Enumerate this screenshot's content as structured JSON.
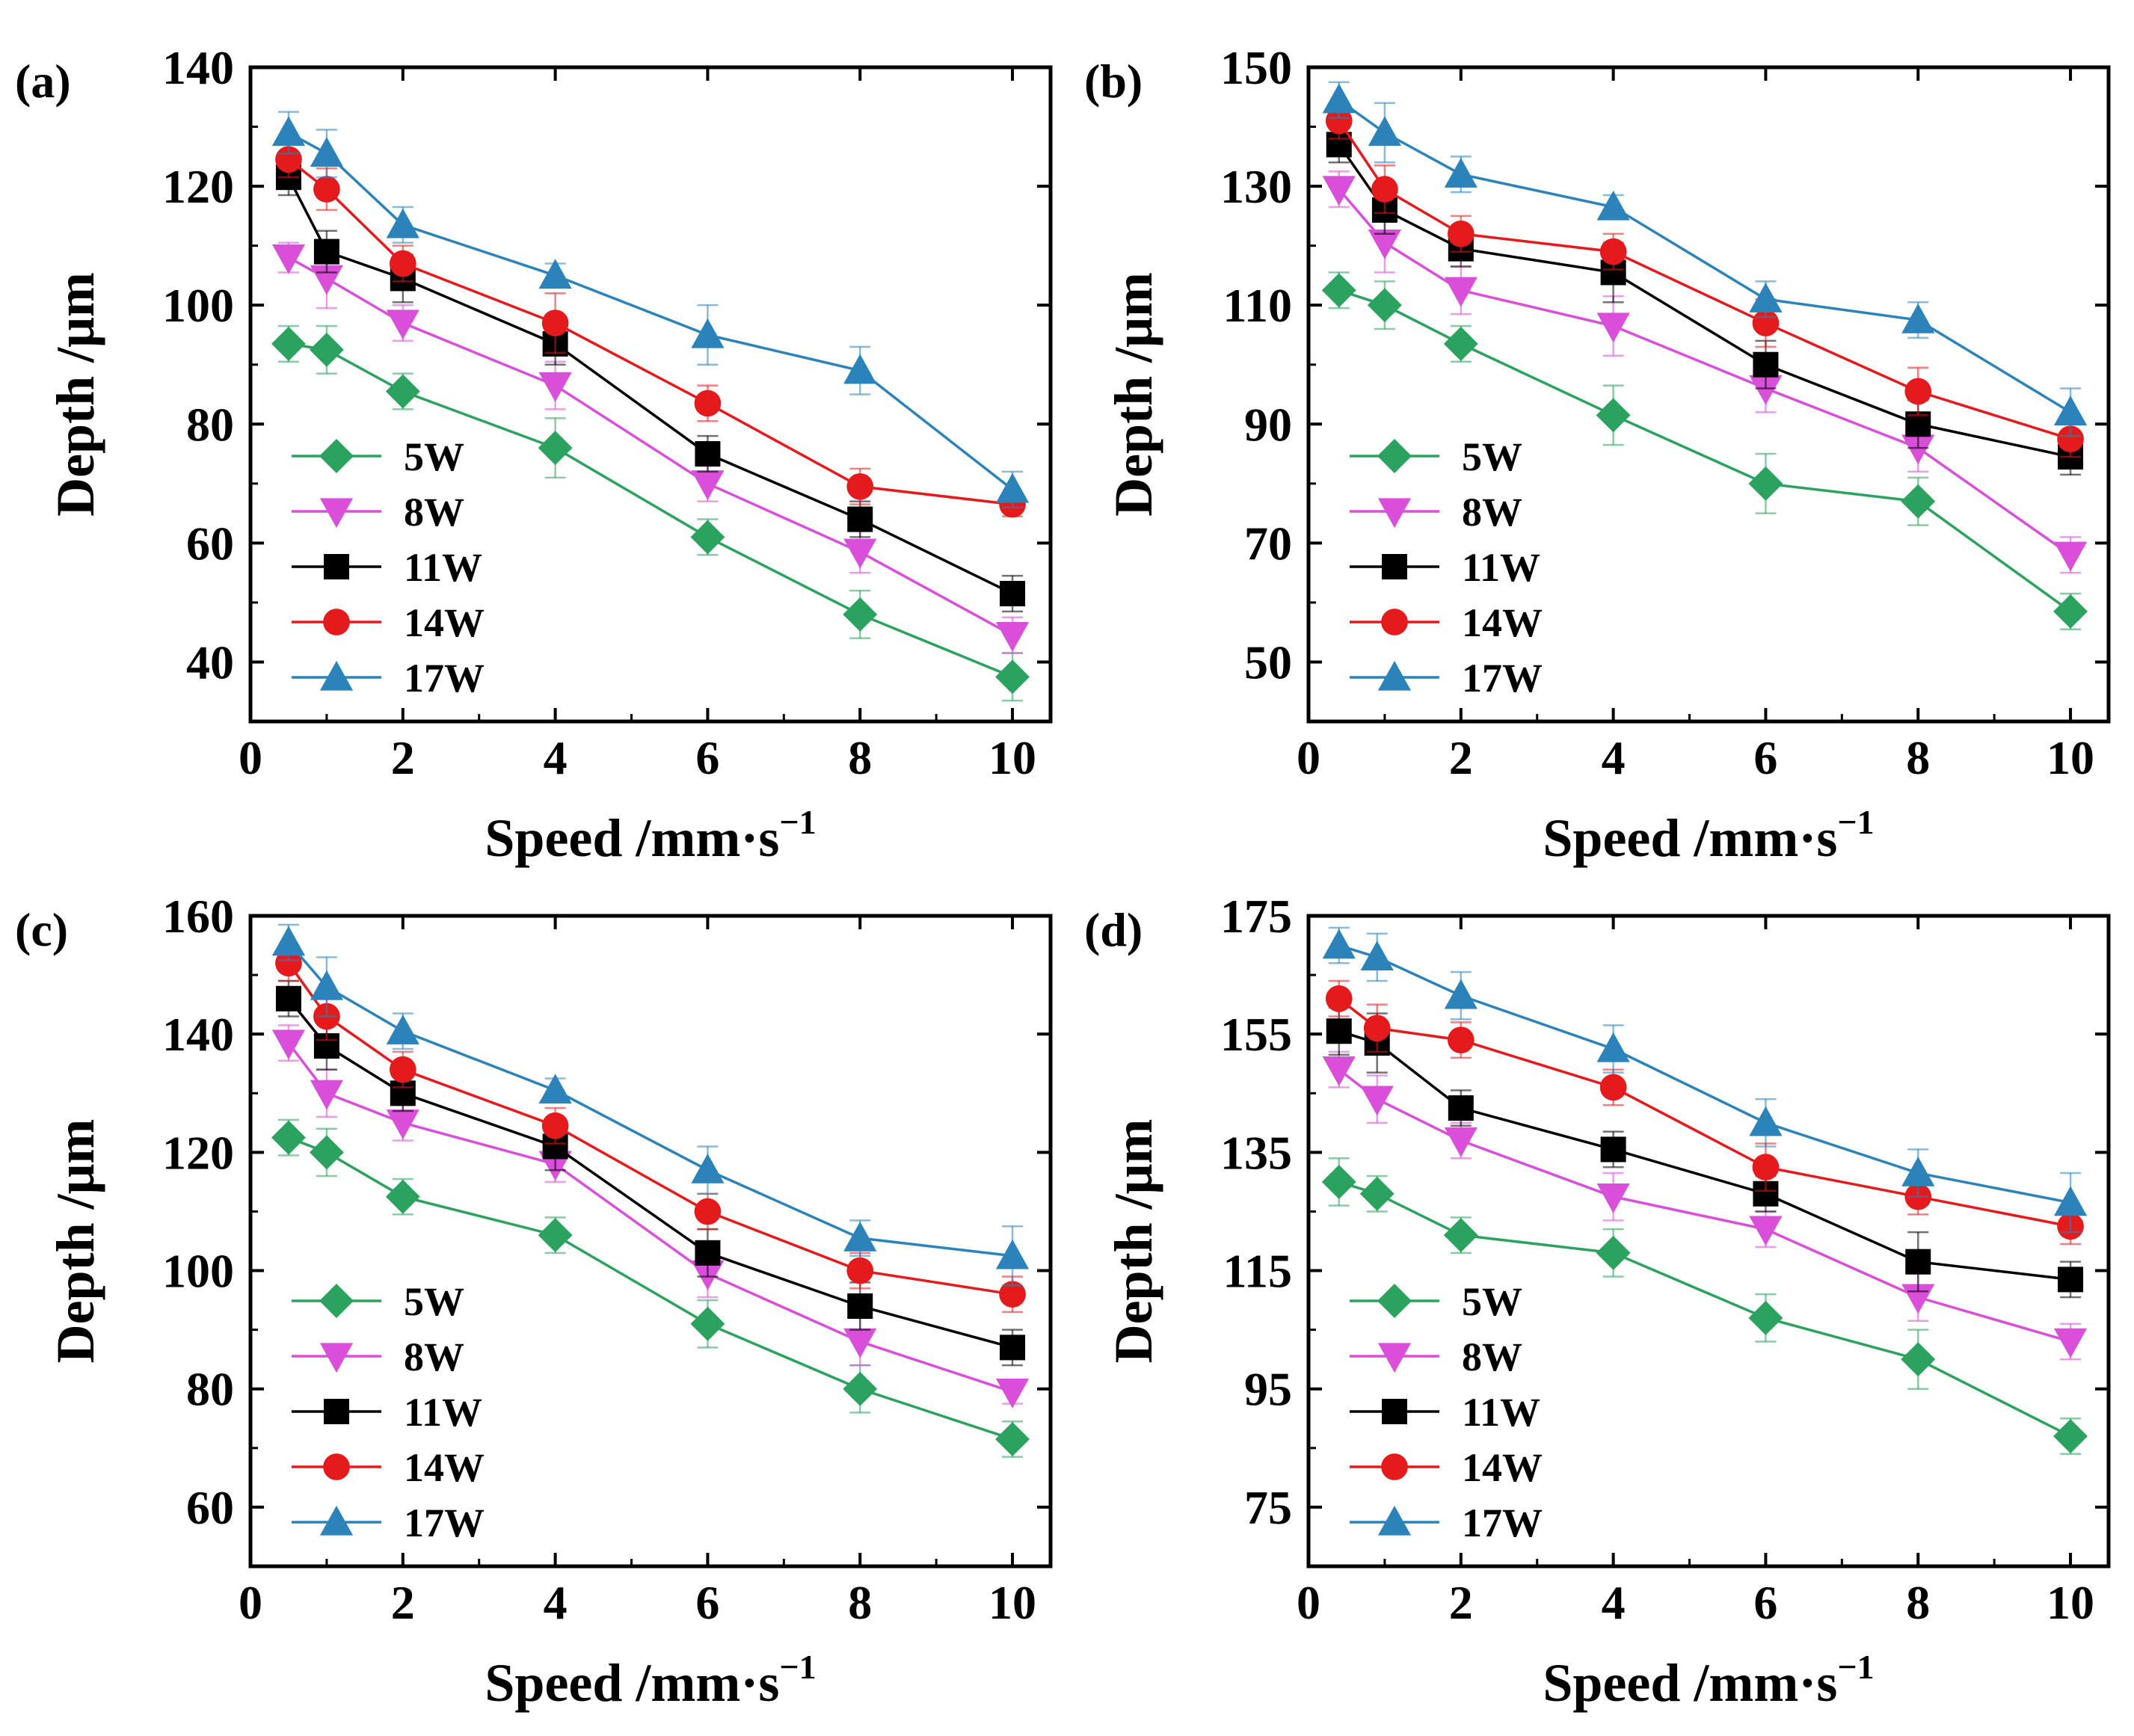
{
  "chart_data": [
    {
      "type": "line",
      "panel_label": "(a)",
      "xlabel": "Speed /mm·s",
      "xlabel_sup": "−1",
      "ylabel": "Depth /μm",
      "xlim": [
        0,
        10.5
      ],
      "ylim": [
        30,
        140
      ],
      "xticks": [
        "0",
        "2",
        "4",
        "6",
        "8",
        "10"
      ],
      "yticks": [
        "40",
        "60",
        "80",
        "100",
        "120",
        "140"
      ],
      "legend_position": "bottom-left",
      "x": [
        0.5,
        1,
        2,
        4,
        6,
        8,
        10
      ],
      "series": [
        {
          "name": "5W",
          "color": "#2ca25f",
          "marker": "diamond",
          "values": [
            93.5,
            92.5,
            85.5,
            76,
            61,
            48,
            37.5
          ],
          "errors": [
            3,
            4,
            3,
            5,
            3,
            4,
            4
          ]
        },
        {
          "name": "8W",
          "color": "#d94fd9",
          "marker": "triangle-down",
          "values": [
            108,
            104.5,
            97,
            86.5,
            70,
            58.5,
            44.5
          ],
          "errors": [
            2.5,
            5,
            3,
            4,
            3,
            3.5,
            3
          ]
        },
        {
          "name": "11W",
          "color": "#000000",
          "marker": "square",
          "values": [
            121.5,
            109,
            104.5,
            93.5,
            75,
            64,
            51.5
          ],
          "errors": [
            3,
            3.5,
            4,
            3.5,
            3,
            3,
            3
          ]
        },
        {
          "name": "14W",
          "color": "#e41a1c",
          "marker": "circle",
          "values": [
            124.5,
            119.5,
            107,
            97,
            83.5,
            69.5,
            66.5
          ],
          "errors": [
            3,
            3.5,
            3,
            5,
            3,
            3,
            2
          ]
        },
        {
          "name": "17W",
          "color": "#2b83ba",
          "marker": "triangle-up",
          "values": [
            129,
            125.5,
            113.5,
            105,
            95,
            89,
            69
          ],
          "errors": [
            3.5,
            4,
            3,
            2,
            5,
            4,
            3
          ]
        }
      ]
    },
    {
      "type": "line",
      "panel_label": "(b)",
      "xlabel": "Speed /mm·s",
      "xlabel_sup": "−1",
      "ylabel": "Depth /μm",
      "xlim": [
        0,
        10.5
      ],
      "ylim": [
        40,
        150
      ],
      "xticks": [
        "0",
        "2",
        "4",
        "6",
        "8",
        "10"
      ],
      "yticks": [
        "50",
        "70",
        "90",
        "110",
        "130",
        "150"
      ],
      "legend_position": "bottom-left",
      "x": [
        0.4,
        1,
        2,
        4,
        6,
        8,
        10
      ],
      "series": [
        {
          "name": "5W",
          "color": "#2ca25f",
          "marker": "diamond",
          "values": [
            112.5,
            110,
            103.5,
            91.5,
            80,
            77,
            58.5
          ],
          "errors": [
            3,
            4,
            3,
            5,
            5,
            4,
            3
          ]
        },
        {
          "name": "8W",
          "color": "#d94fd9",
          "marker": "triangle-down",
          "values": [
            129.5,
            120.5,
            112.5,
            106.5,
            96,
            86,
            68
          ],
          "errors": [
            3,
            5,
            4,
            5,
            4,
            4,
            3
          ]
        },
        {
          "name": "11W",
          "color": "#000000",
          "marker": "square",
          "values": [
            137,
            126,
            119.5,
            115.5,
            100,
            90,
            84.5
          ],
          "errors": [
            3,
            4,
            3,
            5,
            4,
            4,
            3
          ]
        },
        {
          "name": "14W",
          "color": "#e41a1c",
          "marker": "circle",
          "values": [
            141,
            129.5,
            122,
            119,
            107,
            95.5,
            87.5
          ],
          "errors": [
            3,
            4,
            3,
            3,
            4,
            4,
            3
          ]
        },
        {
          "name": "17W",
          "color": "#2b83ba",
          "marker": "triangle-up",
          "values": [
            144.5,
            139,
            132,
            126.5,
            111,
            107.5,
            92
          ],
          "errors": [
            3,
            5,
            3,
            2,
            3,
            3,
            4
          ]
        }
      ]
    },
    {
      "type": "line",
      "panel_label": "(c)",
      "xlabel": "Speed /mm·s",
      "xlabel_sup": "−1",
      "ylabel": "Depth /μm",
      "xlim": [
        0,
        10.5
      ],
      "ylim": [
        50,
        160
      ],
      "xticks": [
        "0",
        "2",
        "4",
        "6",
        "8",
        "10"
      ],
      "yticks": [
        "60",
        "80",
        "100",
        "120",
        "140",
        "160"
      ],
      "legend_position": "bottom-left",
      "x": [
        0.5,
        1,
        2,
        4,
        6,
        8,
        10
      ],
      "series": [
        {
          "name": "5W",
          "color": "#2ca25f",
          "marker": "diamond",
          "values": [
            122.5,
            120,
            112.5,
            106,
            91,
            80,
            71.5
          ],
          "errors": [
            3,
            4,
            3,
            3,
            4,
            4,
            3
          ]
        },
        {
          "name": "8W",
          "color": "#d94fd9",
          "marker": "triangle-down",
          "values": [
            138.5,
            130,
            125,
            118,
            99.5,
            88,
            79.5
          ],
          "errors": [
            3,
            4,
            3,
            3,
            4,
            4,
            2
          ]
        },
        {
          "name": "11W",
          "color": "#000000",
          "marker": "square",
          "values": [
            146,
            138,
            130,
            121,
            103,
            94,
            87
          ],
          "errors": [
            3,
            4,
            3,
            4,
            4,
            4,
            3
          ]
        },
        {
          "name": "14W",
          "color": "#e41a1c",
          "marker": "circle",
          "values": [
            152,
            143,
            134,
            124.5,
            110,
            100,
            96
          ],
          "errors": [
            3,
            4,
            3,
            3,
            3,
            3,
            3
          ]
        },
        {
          "name": "17W",
          "color": "#2b83ba",
          "marker": "triangle-up",
          "values": [
            155.5,
            148,
            140.5,
            130.5,
            117,
            105.5,
            102.5
          ],
          "errors": [
            3,
            5,
            3,
            2,
            4,
            3,
            5
          ]
        }
      ]
    },
    {
      "type": "line",
      "panel_label": "(d)",
      "xlabel": "Speed /mm·s",
      "xlabel_sup": "−1",
      "ylabel": "Depth /μm",
      "xlim": [
        0,
        10.5
      ],
      "ylim": [
        65,
        175
      ],
      "xticks": [
        "0",
        "2",
        "4",
        "6",
        "8",
        "10"
      ],
      "yticks": [
        "75",
        "95",
        "115",
        "135",
        "155",
        "175"
      ],
      "legend_position": "bottom-left",
      "x": [
        0.4,
        0.9,
        2,
        4,
        6,
        8,
        10
      ],
      "series": [
        {
          "name": "5W",
          "color": "#2ca25f",
          "marker": "diamond",
          "values": [
            130,
            128,
            121,
            118,
            107,
            100,
            87
          ],
          "errors": [
            4,
            3,
            3,
            4,
            4,
            5,
            3
          ]
        },
        {
          "name": "8W",
          "color": "#d94fd9",
          "marker": "triangle-down",
          "values": [
            149,
            144,
            137,
            127.5,
            122,
            110.5,
            103
          ],
          "errors": [
            3,
            4,
            3,
            4,
            3,
            4,
            3
          ]
        },
        {
          "name": "11W",
          "color": "#000000",
          "marker": "square",
          "values": [
            155.5,
            153.5,
            142.5,
            135.5,
            128,
            116.5,
            113.5
          ],
          "errors": [
            4,
            5,
            3,
            3,
            3,
            5,
            3
          ]
        },
        {
          "name": "14W",
          "color": "#e41a1c",
          "marker": "circle",
          "values": [
            161,
            156,
            154,
            146,
            132.5,
            127.5,
            122.5
          ],
          "errors": [
            3,
            4,
            3,
            3,
            4,
            3,
            3
          ]
        },
        {
          "name": "17W",
          "color": "#2b83ba",
          "marker": "triangle-up",
          "values": [
            170,
            168,
            161.5,
            152.5,
            140,
            131.5,
            126.5
          ],
          "errors": [
            3,
            4,
            4,
            4,
            4,
            4,
            5
          ]
        }
      ]
    }
  ]
}
